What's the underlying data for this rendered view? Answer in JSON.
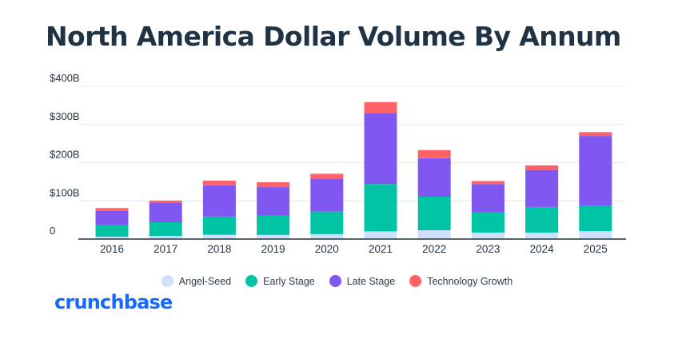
{
  "brand": {
    "logo_text": "crunchbase",
    "logo_color": "#146aff"
  },
  "chart_data": {
    "type": "bar",
    "stacked": true,
    "title": "North America Dollar Volume By Annum",
    "xlabel": "",
    "ylabel": "",
    "ylim": [
      0,
      400
    ],
    "y_ticks": [
      0,
      100,
      200,
      300,
      400
    ],
    "y_tick_labels": [
      "0",
      "$100B",
      "$200B",
      "$300B",
      "$400B"
    ],
    "grid": true,
    "legend_position": "bottom-center",
    "categories": [
      "2016",
      "2017",
      "2018",
      "2019",
      "2020",
      "2021",
      "2022",
      "2023",
      "2024",
      "2025"
    ],
    "series": [
      {
        "name": "Angel-Seed",
        "color": "#cfe0fb",
        "values": [
          6,
          8,
          11,
          11,
          13,
          20,
          23,
          17,
          17,
          21
        ]
      },
      {
        "name": "Early Stage",
        "color": "#00c4a3",
        "values": [
          31,
          36,
          48,
          50,
          59,
          124,
          88,
          53,
          67,
          67
        ]
      },
      {
        "name": "Late Stage",
        "color": "#8057f0",
        "values": [
          37,
          51,
          82,
          75,
          85,
          186,
          101,
          74,
          97,
          182
        ]
      },
      {
        "name": "Technology Growth",
        "color": "#ff6166",
        "values": [
          7,
          6,
          12,
          13,
          14,
          29,
          21,
          8,
          12,
          10
        ]
      }
    ]
  }
}
